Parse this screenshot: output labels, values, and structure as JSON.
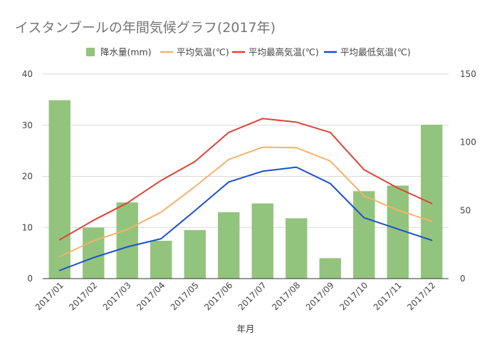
{
  "chart_data": {
    "type": "bar+line",
    "title": "イスタンブールの年間気候グラフ(2017年)",
    "xlabel": "年月",
    "ylabel_left": "",
    "ylabel_right": "",
    "categories": [
      "2017/01",
      "2017/02",
      "2017/03",
      "2017/04",
      "2017/05",
      "2017/06",
      "2017/07",
      "2017/08",
      "2017/09",
      "2017/10",
      "2017/11",
      "2017/12"
    ],
    "ylim_left": [
      0,
      40
    ],
    "yticks_left": [
      0,
      10,
      20,
      30,
      40
    ],
    "ylim_right": [
      0,
      150
    ],
    "yticks_right": [
      0,
      50,
      100,
      150
    ],
    "grid": true,
    "legend_position": "top",
    "series": [
      {
        "name": "降水量(mm)",
        "kind": "bar",
        "axis": "left",
        "color": "#93c47d",
        "values": [
          34.9,
          10.0,
          14.9,
          7.4,
          9.5,
          13.0,
          14.7,
          11.8,
          4.0,
          17.1,
          18.2,
          30.1
        ]
      },
      {
        "name": "平均気温(℃)",
        "kind": "line",
        "axis": "left",
        "color": "#f6b26b",
        "values": [
          4.3,
          7.4,
          9.6,
          13.0,
          18.0,
          23.3,
          25.7,
          25.6,
          23.0,
          16.2,
          13.4,
          11.2
        ]
      },
      {
        "name": "平均最高気温(℃)",
        "kind": "line",
        "axis": "left",
        "color": "#dc4437",
        "values": [
          7.6,
          11.4,
          14.8,
          19.2,
          22.9,
          28.6,
          31.3,
          30.6,
          28.6,
          21.3,
          17.7,
          14.7
        ]
      },
      {
        "name": "平均最低気温(℃)",
        "kind": "line",
        "axis": "left",
        "color": "#1c4fcd",
        "values": [
          1.6,
          4.1,
          6.2,
          7.8,
          13.3,
          18.9,
          21.0,
          21.8,
          18.6,
          11.9,
          9.7,
          7.5
        ]
      }
    ]
  }
}
